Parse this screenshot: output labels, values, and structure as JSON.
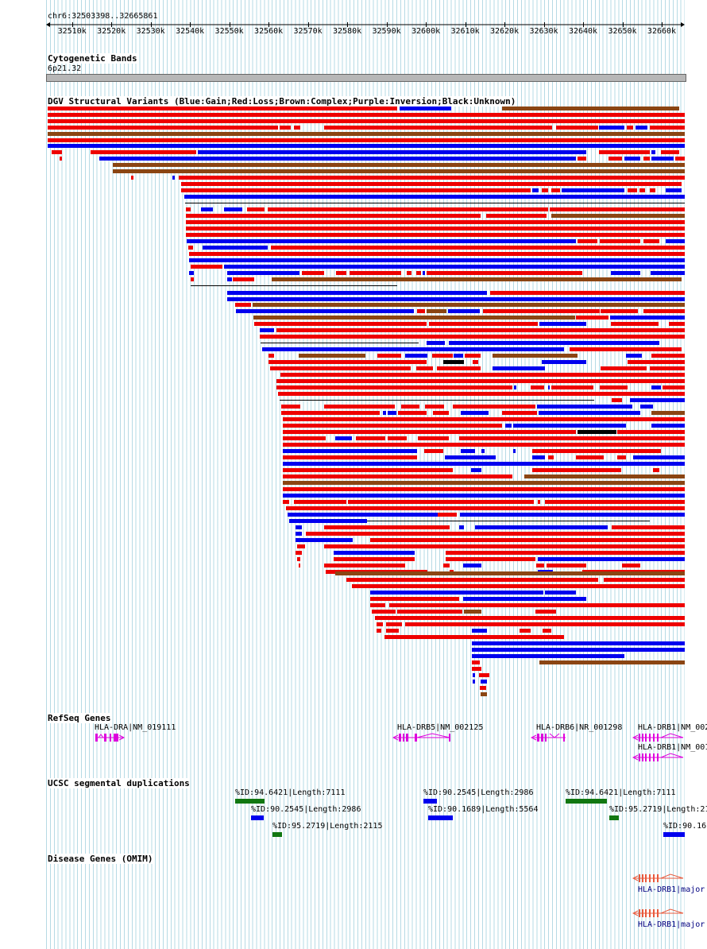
{
  "location": "chr6:32503398..32665861",
  "ruler": {
    "ticks": [
      "32510k",
      "32520k",
      "32530k",
      "32540k",
      "32550k",
      "32560k",
      "32570k",
      "32580k",
      "32590k",
      "32600k",
      "32610k",
      "32620k",
      "32630k",
      "32640k",
      "32650k",
      "32660k"
    ],
    "start_kb": 32503.398,
    "end_kb": 32665.861
  },
  "tracks": {
    "cytoband": {
      "title": "Cytogenetic Bands",
      "band": "6p21.32"
    },
    "dgv": {
      "title": "DGV Structural Variants (Blue:Gain;Red:Loss;Brown:Complex;Purple:Inversion;Black:Unknown)"
    },
    "refseq": {
      "title": "RefSeq Genes",
      "genes": [
        {
          "label": "HLA-DRA|NM_019111",
          "strand": "+"
        },
        {
          "label": "HLA-DRB5|NM_002125",
          "strand": "-"
        },
        {
          "label": "HLA-DRB6|NR_001298",
          "strand": "-"
        },
        {
          "label": "HLA-DRB1|NM_002",
          "strand": "-"
        },
        {
          "label": "HLA-DRB1|NM_001",
          "strand": "-"
        }
      ]
    },
    "segdup": {
      "title": "UCSC segmental duplications",
      "items": [
        {
          "label": "%ID:94.6421|Length:7111"
        },
        {
          "label": "%ID:90.2545|Length:2986"
        },
        {
          "label": "%ID:95.2719|Length:2115"
        },
        {
          "label": "%ID:90.2545|Length:2986"
        },
        {
          "label": "%ID:90.1689|Length:5564"
        },
        {
          "label": "%ID:94.6421|Length:7111"
        },
        {
          "label": "%ID:95.2719|Length:21"
        },
        {
          "label": "%ID:90.16"
        }
      ]
    },
    "omim": {
      "title": "Disease Genes (OMIM)",
      "genes": [
        {
          "label": "HLA-DRB1|major"
        },
        {
          "label": "HLA-DRB1|major"
        }
      ]
    }
  },
  "colors": {
    "gain": "#0000ee",
    "loss": "#ee0000",
    "complex": "#8b4513",
    "unknown": "#000000",
    "gene": "#dd00dd",
    "segdup_green": "#117711",
    "segdup_blue": "#0000ee",
    "omim": "#e8593c",
    "label_blue": "#000080"
  }
}
